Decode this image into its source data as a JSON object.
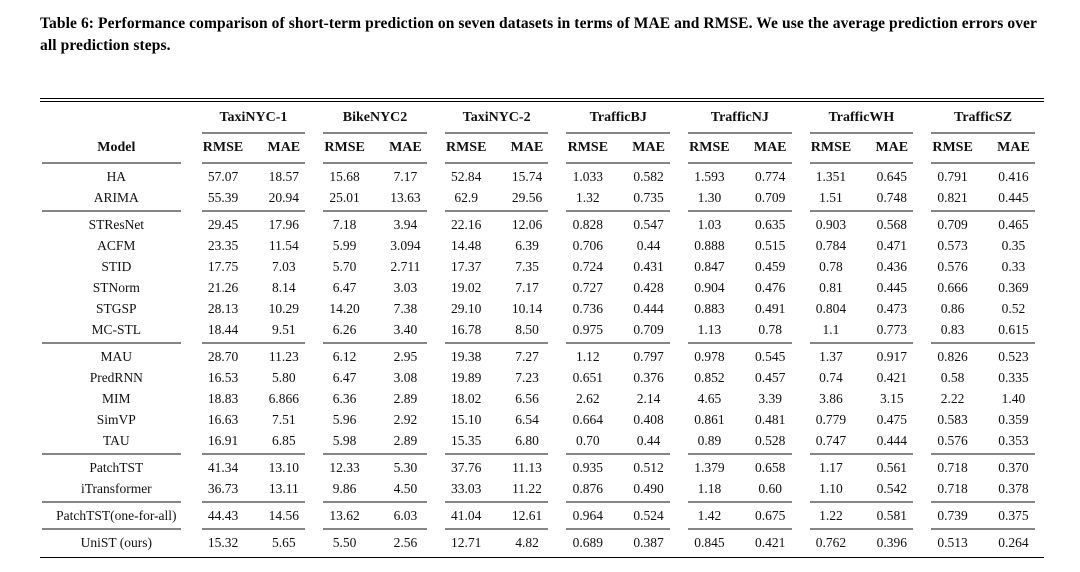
{
  "caption": "Table 6: Performance comparison of short-term prediction on seven datasets in terms of MAE and RMSE. We use the average prediction errors over all prediction steps.",
  "colors": {
    "text": "#111111",
    "rule_heavy": "#000000",
    "rule_light": "#868686",
    "background": "#ffffff"
  },
  "table": {
    "model_header": "Model",
    "metric_labels": [
      "RMSE",
      "MAE"
    ],
    "datasets": [
      "TaxiNYC-1",
      "BikeNYC2",
      "TaxiNYC-2",
      "TrafficBJ",
      "TrafficNJ",
      "TrafficWH",
      "TrafficSZ"
    ],
    "groups": [
      {
        "rows": [
          {
            "model": "HA",
            "values": [
              "57.07",
              "18.57",
              "15.68",
              "7.17",
              "52.84",
              "15.74",
              "1.033",
              "0.582",
              "1.593",
              "0.774",
              "1.351",
              "0.645",
              "0.791",
              "0.416"
            ]
          },
          {
            "model": "ARIMA",
            "values": [
              "55.39",
              "20.94",
              "25.01",
              "13.63",
              "62.9",
              "29.56",
              "1.32",
              "0.735",
              "1.30",
              "0.709",
              "1.51",
              "0.748",
              "0.821",
              "0.445"
            ]
          }
        ]
      },
      {
        "rows": [
          {
            "model": "STResNet",
            "values": [
              "29.45",
              "17.96",
              "7.18",
              "3.94",
              "22.16",
              "12.06",
              "0.828",
              "0.547",
              "1.03",
              "0.635",
              "0.903",
              "0.568",
              "0.709",
              "0.465"
            ]
          },
          {
            "model": "ACFM",
            "values": [
              "23.35",
              "11.54",
              "5.99",
              "3.094",
              "14.48",
              "6.39",
              "0.706",
              "0.44",
              "0.888",
              "0.515",
              "0.784",
              "0.471",
              "0.573",
              "0.35"
            ]
          },
          {
            "model": "STID",
            "values": [
              "17.75",
              "7.03",
              "5.70",
              "2.711",
              "17.37",
              "7.35",
              "0.724",
              "0.431",
              "0.847",
              "0.459",
              "0.78",
              "0.436",
              "0.576",
              "0.33"
            ]
          },
          {
            "model": "STNorm",
            "values": [
              "21.26",
              "8.14",
              "6.47",
              "3.03",
              "19.02",
              "7.17",
              "0.727",
              "0.428",
              "0.904",
              "0.476",
              "0.81",
              "0.445",
              "0.666",
              "0.369"
            ]
          },
          {
            "model": "STGSP",
            "values": [
              "28.13",
              "10.29",
              "14.20",
              "7.38",
              "29.10",
              "10.14",
              "0.736",
              "0.444",
              "0.883",
              "0.491",
              "0.804",
              "0.473",
              "0.86",
              "0.52"
            ]
          },
          {
            "model": "MC-STL",
            "values": [
              "18.44",
              "9.51",
              "6.26",
              "3.40",
              "16.78",
              "8.50",
              "0.975",
              "0.709",
              "1.13",
              "0.78",
              "1.1",
              "0.773",
              "0.83",
              "0.615"
            ]
          }
        ]
      },
      {
        "rows": [
          {
            "model": "MAU",
            "values": [
              "28.70",
              "11.23",
              "6.12",
              "2.95",
              "19.38",
              "7.27",
              "1.12",
              "0.797",
              "0.978",
              "0.545",
              "1.37",
              "0.917",
              "0.826",
              "0.523"
            ]
          },
          {
            "model": "PredRNN",
            "values": [
              "16.53",
              "5.80",
              "6.47",
              "3.08",
              "19.89",
              "7.23",
              "0.651",
              "0.376",
              "0.852",
              "0.457",
              "0.74",
              "0.421",
              "0.58",
              "0.335"
            ]
          },
          {
            "model": "MIM",
            "values": [
              "18.83",
              "6.866",
              "6.36",
              "2.89",
              "18.02",
              "6.56",
              "2.62",
              "2.14",
              "4.65",
              "3.39",
              "3.86",
              "3.15",
              "2.22",
              "1.40"
            ]
          },
          {
            "model": "SimVP",
            "values": [
              "16.63",
              "7.51",
              "5.96",
              "2.92",
              "15.10",
              "6.54",
              "0.664",
              "0.408",
              "0.861",
              "0.481",
              "0.779",
              "0.475",
              "0.583",
              "0.359"
            ]
          },
          {
            "model": "TAU",
            "values": [
              "16.91",
              "6.85",
              "5.98",
              "2.89",
              "15.35",
              "6.80",
              "0.70",
              "0.44",
              "0.89",
              "0.528",
              "0.747",
              "0.444",
              "0.576",
              "0.353"
            ]
          }
        ]
      },
      {
        "rows": [
          {
            "model": "PatchTST",
            "values": [
              "41.34",
              "13.10",
              "12.33",
              "5.30",
              "37.76",
              "11.13",
              "0.935",
              "0.512",
              "1.379",
              "0.658",
              "1.17",
              "0.561",
              "0.718",
              "0.370"
            ]
          },
          {
            "model": "iTransformer",
            "values": [
              "36.73",
              "13.11",
              "9.86",
              "4.50",
              "33.03",
              "11.22",
              "0.876",
              "0.490",
              "1.18",
              "0.60",
              "1.10",
              "0.542",
              "0.718",
              "0.378"
            ]
          }
        ]
      },
      {
        "rows": [
          {
            "model": "PatchTST(one-for-all)",
            "values": [
              "44.43",
              "14.56",
              "13.62",
              "6.03",
              "41.04",
              "12.61",
              "0.964",
              "0.524",
              "1.42",
              "0.675",
              "1.22",
              "0.581",
              "0.739",
              "0.375"
            ]
          }
        ]
      },
      {
        "rows": [
          {
            "model": "UniST (ours)",
            "values": [
              "15.32",
              "5.65",
              "5.50",
              "2.56",
              "12.71",
              "4.82",
              "0.689",
              "0.387",
              "0.845",
              "0.421",
              "0.762",
              "0.396",
              "0.513",
              "0.264"
            ]
          }
        ]
      }
    ]
  }
}
